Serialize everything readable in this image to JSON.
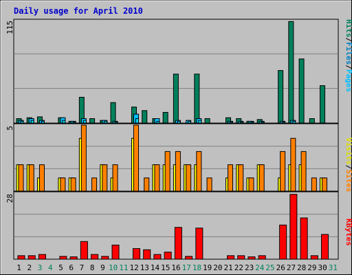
{
  "chart_data": {
    "type": "bar",
    "title": "Daily usage for April 2010",
    "days": [
      1,
      2,
      3,
      4,
      5,
      6,
      7,
      8,
      9,
      10,
      11,
      12,
      13,
      14,
      15,
      16,
      17,
      18,
      19,
      20,
      21,
      22,
      23,
      24,
      25,
      26,
      27,
      28,
      29,
      30,
      31
    ],
    "weekend_days": [
      3,
      4,
      10,
      11,
      17,
      18,
      24,
      25,
      31
    ],
    "colors": {
      "hits": "#00805c",
      "files": "#00c0ff",
      "pages": "#00e0ff",
      "visits": "#ffff00",
      "sites": "#ff8000",
      "kbytes": "#ff0000",
      "title": "#0000cc",
      "weekend": "#00805c",
      "panel_bg": "#c0c0c0",
      "grid": "#808080"
    },
    "legend": {
      "top": [
        {
          "text": "Hits",
          "color": "#00805c"
        },
        {
          "text": "/",
          "color": "#000000"
        },
        {
          "text": "Files",
          "color": "#0080c0"
        },
        {
          "text": "/",
          "color": "#000000"
        },
        {
          "text": "Pages",
          "color": "#00c0ff"
        }
      ],
      "middle": [
        {
          "text": "Visits",
          "color": "#e0e000"
        },
        {
          "text": "/",
          "color": "#000000"
        },
        {
          "text": "Sites",
          "color": "#ff8000"
        }
      ],
      "bottom": [
        {
          "text": "KBytes",
          "color": "#ff0000"
        }
      ]
    },
    "panels": [
      {
        "id": "hits-files-pages",
        "ymax": 115,
        "ymax_label": "115",
        "series": [
          {
            "key": "hits",
            "name": "Hits",
            "values": [
              5,
              6,
              7,
              0,
              6,
              2,
              29,
              5,
              3,
              23,
              0,
              18,
              14,
              5,
              12,
              55,
              0,
              55,
              5,
              0,
              6,
              5,
              2,
              4,
              0,
              59,
              114,
              72,
              5,
              42,
              0
            ]
          },
          {
            "key": "files",
            "name": "Files",
            "values": [
              3,
              5,
              3,
              0,
              6,
              2,
              5,
              0,
              3,
              2,
              0,
              10,
              0,
              5,
              0,
              3,
              3,
              5,
              0,
              0,
              2,
              2,
              2,
              2,
              0,
              2,
              3,
              0,
              0,
              0,
              0
            ]
          },
          {
            "key": "pages",
            "name": "Pages",
            "values": [
              2,
              3,
              2,
              0,
              3,
              1,
              3,
              0,
              2,
              1,
              0,
              5,
              0,
              2,
              0,
              2,
              2,
              3,
              0,
              0,
              1,
              1,
              1,
              1,
              0,
              1,
              2,
              0,
              0,
              0,
              0
            ]
          }
        ]
      },
      {
        "id": "visits-sites",
        "ymax": 5,
        "ymax_label": "5",
        "series": [
          {
            "key": "visits",
            "name": "Visits",
            "values": [
              2,
              2,
              1,
              0,
              1,
              1,
              4,
              0,
              2,
              1,
              0,
              4,
              0,
              2,
              2,
              2,
              2,
              2,
              0,
              0,
              1,
              2,
              1,
              2,
              0,
              1,
              2,
              2,
              0,
              1,
              0
            ]
          },
          {
            "key": "sites",
            "name": "Sites",
            "values": [
              2,
              2,
              2,
              0,
              1,
              1,
              5,
              1,
              2,
              2,
              0,
              5,
              1,
              2,
              3,
              3,
              2,
              3,
              1,
              0,
              2,
              2,
              1,
              2,
              0,
              3,
              4,
              3,
              1,
              1,
              0
            ]
          }
        ]
      },
      {
        "id": "kbytes",
        "ymax": 28,
        "ymax_label": "28",
        "series": [
          {
            "key": "kbytes",
            "name": "KBytes",
            "values": [
              1.5,
              1.5,
              2,
              0,
              1.2,
              1,
              7.5,
              2,
              1.2,
              6,
              0,
              4.5,
              4,
              2,
              3,
              13.5,
              1.2,
              13.2,
              0,
              0,
              1.5,
              1.5,
              1,
              1.5,
              0,
              14.5,
              27.5,
              17.5,
              1.5,
              10.5,
              0
            ]
          }
        ]
      }
    ]
  }
}
